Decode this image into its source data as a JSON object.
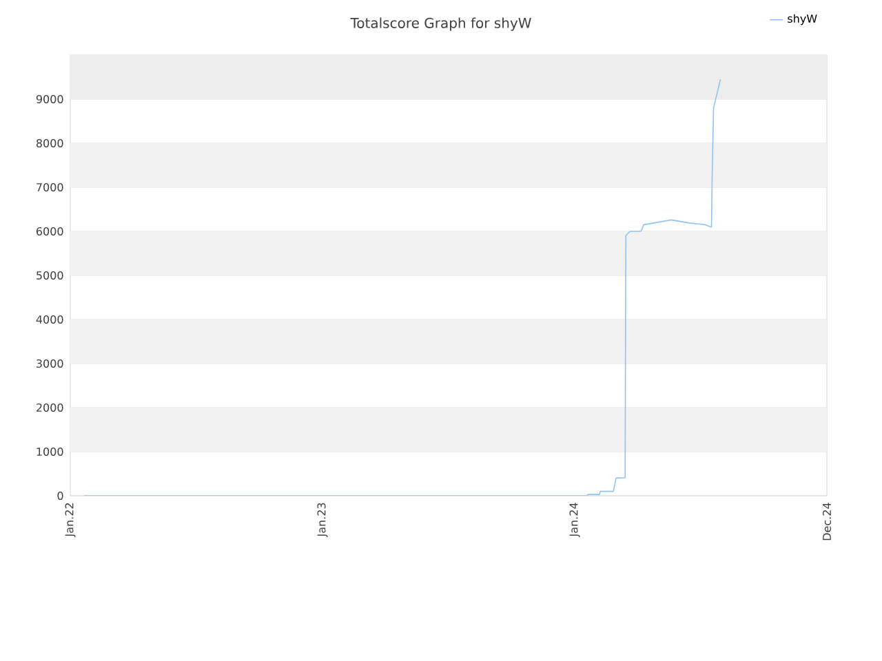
{
  "chart_data": {
    "type": "line",
    "title": "Totalscore Graph for shyW",
    "x": [
      "2022-01-21",
      "2024-01-19",
      "2024-01-20",
      "2024-02-06",
      "2024-02-07",
      "2024-02-26",
      "2024-03-01",
      "2024-03-14",
      "2024-03-15",
      "2024-03-21",
      "2024-04-06",
      "2024-04-10",
      "2024-05-20",
      "2024-06-15",
      "2024-07-08",
      "2024-07-16",
      "2024-07-17",
      "2024-07-18",
      "2024-07-20",
      "2024-07-30"
    ],
    "series": [
      {
        "name": "shyW",
        "color": "#90c4f4",
        "values": [
          0,
          0,
          30,
          30,
          100,
          100,
          400,
          410,
          5900,
          6000,
          6000,
          6150,
          6260,
          6190,
          6150,
          6100,
          6100,
          7250,
          8800,
          9450
        ]
      }
    ],
    "xlim": [
      "2022-01-01",
      "2024-12-31"
    ],
    "xticks": [
      {
        "value": "2022-01-01",
        "label": "Jan.22"
      },
      {
        "value": "2023-01-01",
        "label": "Jan.23"
      },
      {
        "value": "2024-01-01",
        "label": "Jan.24"
      },
      {
        "value": "2024-12-31",
        "label": "Dec.24"
      }
    ],
    "ylim": [
      0,
      10000
    ],
    "yticks": [
      0,
      1000,
      2000,
      3000,
      4000,
      5000,
      6000,
      7000,
      8000,
      9000
    ],
    "bands": [
      {
        "axis": "y",
        "from": 1000,
        "to": 2000,
        "color": "#f2f2f2"
      },
      {
        "axis": "y",
        "from": 3000,
        "to": 4000,
        "color": "#f2f2f2"
      },
      {
        "axis": "y",
        "from": 5000,
        "to": 6000,
        "color": "#f2f2f2"
      },
      {
        "axis": "y",
        "from": 7000,
        "to": 8000,
        "color": "#f2f2f2"
      },
      {
        "axis": "y",
        "from": 9000,
        "to": 10000,
        "color": "#ededed"
      }
    ],
    "grid": "y",
    "legend": "top right",
    "marker": "none",
    "line_style": "solid"
  }
}
